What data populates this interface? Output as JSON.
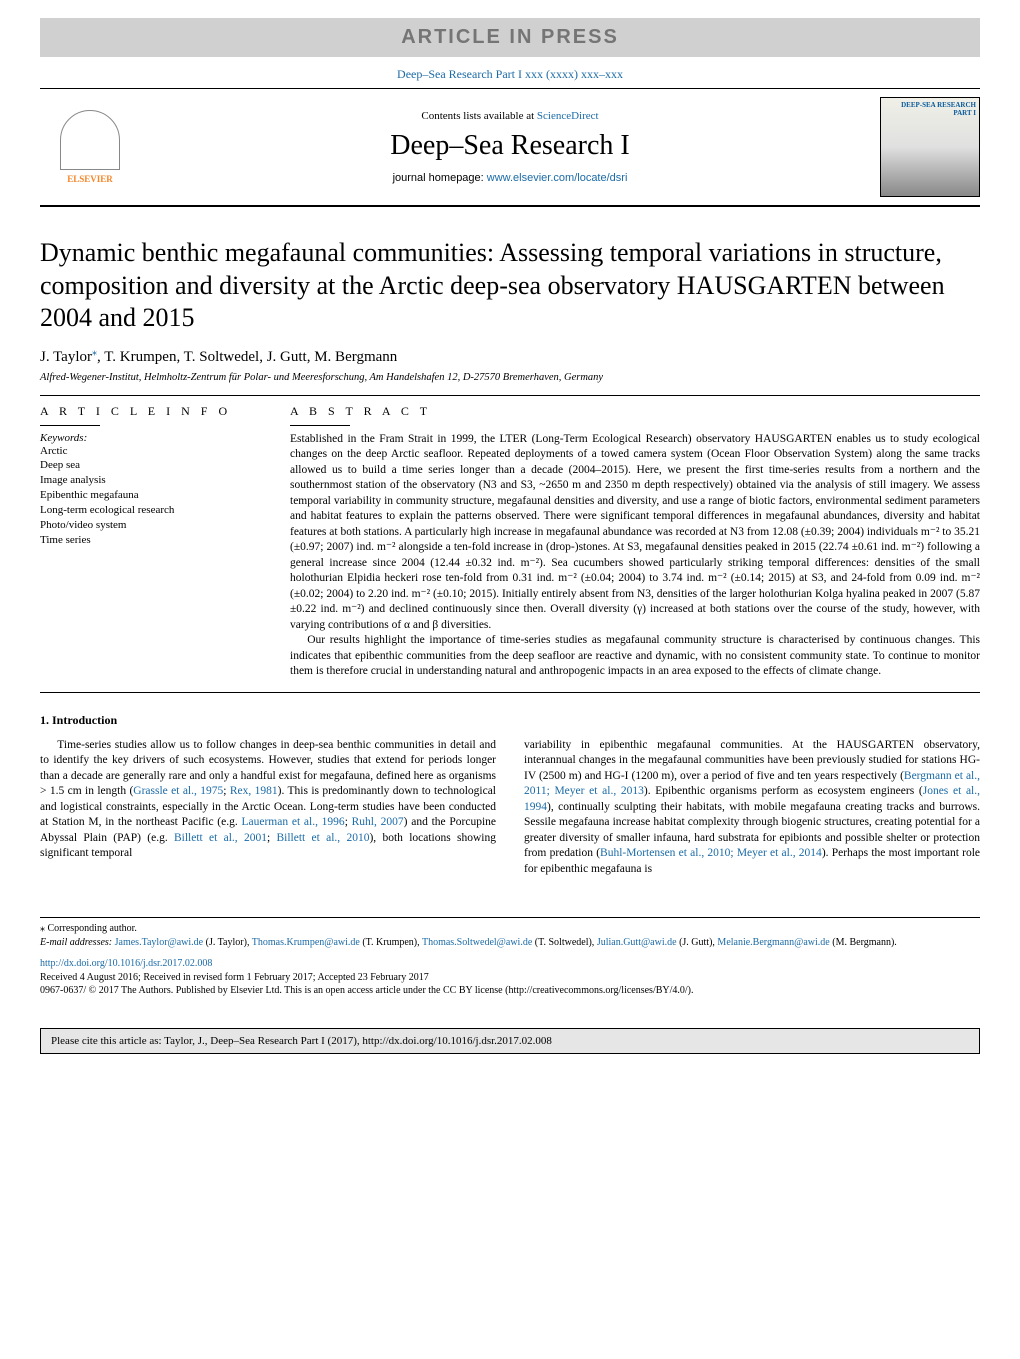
{
  "banner": "ARTICLE IN PRESS",
  "journal_ref": "Deep–Sea Research Part I xxx (xxxx) xxx–xxx",
  "header": {
    "contents_prefix": "Contents lists available at ",
    "contents_link": "ScienceDirect",
    "journal_name": "Deep–Sea Research I",
    "homepage_prefix": "journal homepage: ",
    "homepage_link": "www.elsevier.com/locate/dsri",
    "publisher": "ELSEVIER",
    "cover_label": "DEEP-SEA RESEARCH PART I"
  },
  "title": "Dynamic benthic megafaunal communities: Assessing temporal variations in structure, composition and diversity at the Arctic deep-sea observatory HAUSGARTEN between 2004 and 2015",
  "authors_html": "J. Taylor*, T. Krumpen, T. Soltwedel, J. Gutt, M. Bergmann",
  "author_lead": "J. Taylor",
  "author_rest": ", T. Krumpen, T. Soltwedel, J. Gutt, M. Bergmann",
  "affiliation": "Alfred-Wegener-Institut, Helmholtz-Zentrum für Polar- und Meeresforschung, Am Handelshafen 12, D-27570 Bremerhaven, Germany",
  "info_label": "A R T I C L E  I N F O",
  "abstract_label": "A B S T R A C T",
  "keywords_label": "Keywords:",
  "keywords": [
    "Arctic",
    "Deep sea",
    "Image analysis",
    "Epibenthic megafauna",
    "Long-term ecological research",
    "Photo/video system",
    "Time series"
  ],
  "abstract_p1": "Established in the Fram Strait in 1999, the LTER (Long-Term Ecological Research) observatory HAUSGARTEN enables us to study ecological changes on the deep Arctic seafloor. Repeated deployments of a towed camera system (Ocean Floor Observation System) along the same tracks allowed us to build a time series longer than a decade (2004–2015). Here, we present the first time-series results from a northern and the southernmost station of the observatory (N3 and S3, ~2650 m and 2350 m depth respectively) obtained via the analysis of still imagery. We assess temporal variability in community structure, megafaunal densities and diversity, and use a range of biotic factors, environmental sediment parameters and habitat features to explain the patterns observed. There were significant temporal differences in megafaunal abundances, diversity and habitat features at both stations. A particularly high increase in megafaunal abundance was recorded at N3 from 12.08 (±0.39; 2004) individuals m⁻² to 35.21 (±0.97; 2007) ind. m⁻² alongside a ten-fold increase in (drop-)stones. At S3, megafaunal densities peaked in 2015 (22.74 ±0.61 ind. m⁻²) following a general increase since 2004 (12.44 ±0.32 ind. m⁻²). Sea cucumbers showed particularly striking temporal differences: densities of the small holothurian Elpidia heckeri rose ten-fold from 0.31 ind. m⁻² (±0.04; 2004) to 3.74 ind. m⁻² (±0.14; 2015) at S3, and 24-fold from 0.09 ind. m⁻² (±0.02; 2004) to 2.20 ind. m⁻² (±0.10; 2015). Initially entirely absent from N3, densities of the larger holothurian Kolga hyalina peaked in 2007 (5.87 ±0.22 ind. m⁻²) and declined continuously since then. Overall diversity (γ) increased at both stations over the course of the study, however, with varying contributions of α and β diversities.",
  "abstract_p2": "Our results highlight the importance of time-series studies as megafaunal community structure is characterised by continuous changes. This indicates that epibenthic communities from the deep seafloor are reactive and dynamic, with no consistent community state. To continue to monitor them is therefore crucial in understanding natural and anthropogenic impacts in an area exposed to the effects of climate change.",
  "intro_heading": "1. Introduction",
  "intro_col1_pre": "Time-series studies allow us to follow changes in deep-sea benthic communities in detail and to identify the key drivers of such ecosystems. However, studies that extend for periods longer than a decade are generally rare and only a handful exist for megafauna, defined here as organisms > 1.5 cm in length (",
  "ref_grassle": "Grassle et al., 1975",
  "intro_col1_mid1": "; ",
  "ref_rex": "Rex, 1981",
  "intro_col1_mid2": "). This is predominantly down to technological and logistical constraints, especially in the Arctic Ocean. Long-term studies have been conducted at Station M, in the northeast Pacific (e.g. ",
  "ref_lauerman": "Lauerman et al., 1996",
  "intro_col1_mid3": "; ",
  "ref_ruhl": "Ruhl, 2007",
  "intro_col1_mid4": ") and the Porcupine Abyssal Plain (PAP) (e.g. ",
  "ref_billett2001": "Billett et al., 2001",
  "intro_col1_mid5": "; ",
  "ref_billett2010": "Billett et al., 2010",
  "intro_col1_end": "), both locations showing significant temporal",
  "intro_col2_pre": "variability in epibenthic megafaunal communities. At the HAUSGARTEN observatory, interannual changes in the megafaunal communities have been previously studied for stations HG-IV (2500 m) and HG-I (1200 m), over a period of five and ten years respectively (",
  "ref_bergmann": "Bergmann et al., 2011; Meyer et al., 2013",
  "intro_col2_mid1": "). Epibenthic organisms perform as ecosystem engineers (",
  "ref_jones": "Jones et al., 1994",
  "intro_col2_mid2": "), continually sculpting their habitats, with mobile megafauna creating tracks and burrows. Sessile megafauna increase habitat complexity through biogenic structures, creating potential for a greater diversity of smaller infauna, hard substrata for epibionts and possible shelter or protection from predation (",
  "ref_buhl": "Buhl-Mortensen et al., 2010; Meyer et al., 2014",
  "intro_col2_end": "). Perhaps the most important role for epibenthic megafauna is",
  "footnote_corr": "⁎ Corresponding author.",
  "footnote_email_label": "E-mail addresses: ",
  "emails": {
    "taylor": "James.Taylor@awi.de",
    "taylor_n": " (J. Taylor), ",
    "krumpen": "Thomas.Krumpen@awi.de",
    "krumpen_n": " (T. Krumpen), ",
    "soltwedel": "Thomas.Soltwedel@awi.de",
    "soltwedel_n": " (T. Soltwedel), ",
    "gutt": "Julian.Gutt@awi.de",
    "gutt_n": " (J. Gutt), ",
    "bergmann": "Melanie.Bergmann@awi.de",
    "bergmann_n": " (M. Bergmann)."
  },
  "doi_link": "http://dx.doi.org/10.1016/j.dsr.2017.02.008",
  "received": "Received 4 August 2016; Received in revised form 1 February 2017; Accepted 23 February 2017",
  "copyright": "0967-0637/ © 2017 The Authors. Published by Elsevier Ltd. This is an open access article under the CC BY license (http://creativecommons.org/licenses/BY/4.0/).",
  "cite_box": "Please cite this article as: Taylor, J., Deep–Sea Research Part I (2017), http://dx.doi.org/10.1016/j.dsr.2017.02.008",
  "colors": {
    "link": "#1b6ba7",
    "banner_bg": "#d0d0d0",
    "banner_fg": "#757575",
    "publisher": "#f68628",
    "cite_bg": "#e6e6e6"
  }
}
